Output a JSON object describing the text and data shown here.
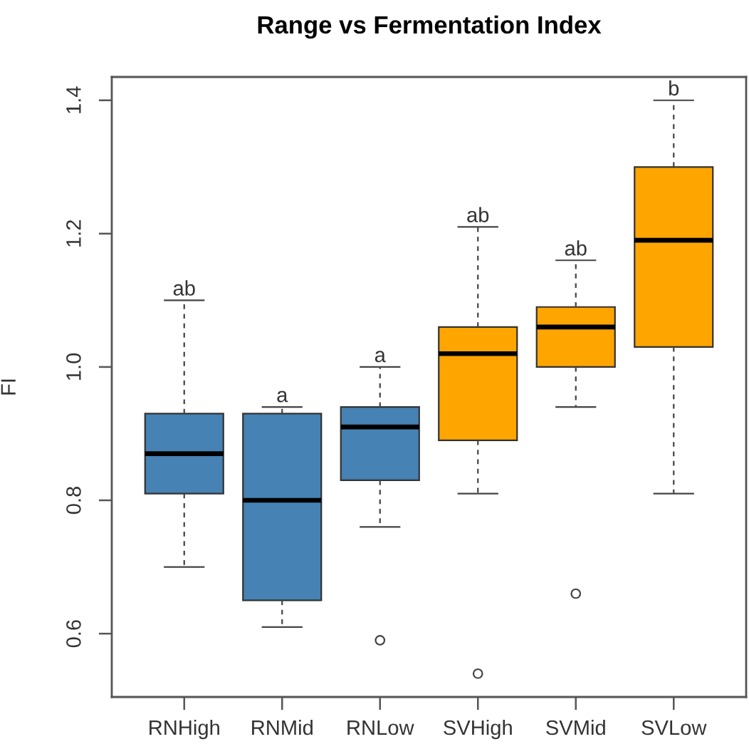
{
  "chart_data": {
    "type": "box",
    "title": "Range vs Fermentation Index",
    "ylabel": "FI",
    "categories": [
      "RNHigh",
      "RNMid",
      "RNLow",
      "SVHigh",
      "SVMid",
      "SVLow"
    ],
    "boxes": [
      {
        "low": 0.7,
        "q1": 0.81,
        "median": 0.87,
        "q3": 0.93,
        "high": 1.1
      },
      {
        "low": 0.61,
        "q1": 0.65,
        "median": 0.8,
        "q3": 0.93,
        "high": 0.94
      },
      {
        "low": 0.76,
        "q1": 0.83,
        "median": 0.91,
        "q3": 0.94,
        "high": 1.0,
        "outliers": [
          0.59
        ]
      },
      {
        "low": 0.81,
        "q1": 0.89,
        "median": 1.02,
        "q3": 1.06,
        "high": 1.21,
        "outliers": [
          0.54
        ]
      },
      {
        "low": 0.94,
        "q1": 1.0,
        "median": 1.06,
        "q3": 1.09,
        "high": 1.16,
        "outliers": [
          0.66
        ]
      },
      {
        "low": 0.81,
        "q1": 1.03,
        "median": 1.19,
        "q3": 1.3,
        "high": 1.4
      }
    ],
    "colors": [
      "#4682b4",
      "#4682b4",
      "#4682b4",
      "#ffa500",
      "#ffa500",
      "#ffa500"
    ],
    "ylim": [
      0.505,
      1.435
    ],
    "yticks": [
      0.6,
      0.8,
      {
        "value": 1,
        "label": "1.0"
      },
      1.2,
      1.4
    ],
    "annotations": [
      {
        "text": "ab",
        "x": "RNHigh",
        "y": 1.1
      },
      {
        "text": "a",
        "x": "RNMid",
        "y": 0.94
      },
      {
        "text": "a",
        "x": "RNLow",
        "y": 1.0
      },
      {
        "text": "ab",
        "x": "SVHigh",
        "y": 1.21
      },
      {
        "text": "ab",
        "x": "SVMid",
        "y": 1.16
      },
      {
        "text": "b",
        "x": "SVLow",
        "y": 1.4
      }
    ]
  }
}
